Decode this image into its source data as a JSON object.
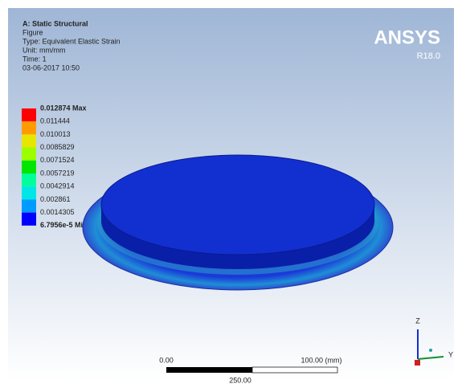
{
  "header": {
    "title": "A: Static Structural",
    "lines": [
      "Figure",
      "Type: Equivalent Elastic Strain",
      "Unit: mm/mm",
      "Time: 1",
      "03-06-2017 10:50"
    ]
  },
  "legend": {
    "labels": [
      "0.012874 Max",
      "0.011444",
      "0.010013",
      "0.0085829",
      "0.0071524",
      "0.0057219",
      "0.0042914",
      "0.002861",
      "0.0014305",
      "6.7956e-5 Min"
    ]
  },
  "logo": {
    "name": "ANSYS",
    "version": "R18.0"
  },
  "scale_bar": {
    "left": "0.00",
    "right": "100.00 (mm)",
    "bottom": "250.00"
  },
  "triad": {
    "z": "Z",
    "y": "Y"
  }
}
